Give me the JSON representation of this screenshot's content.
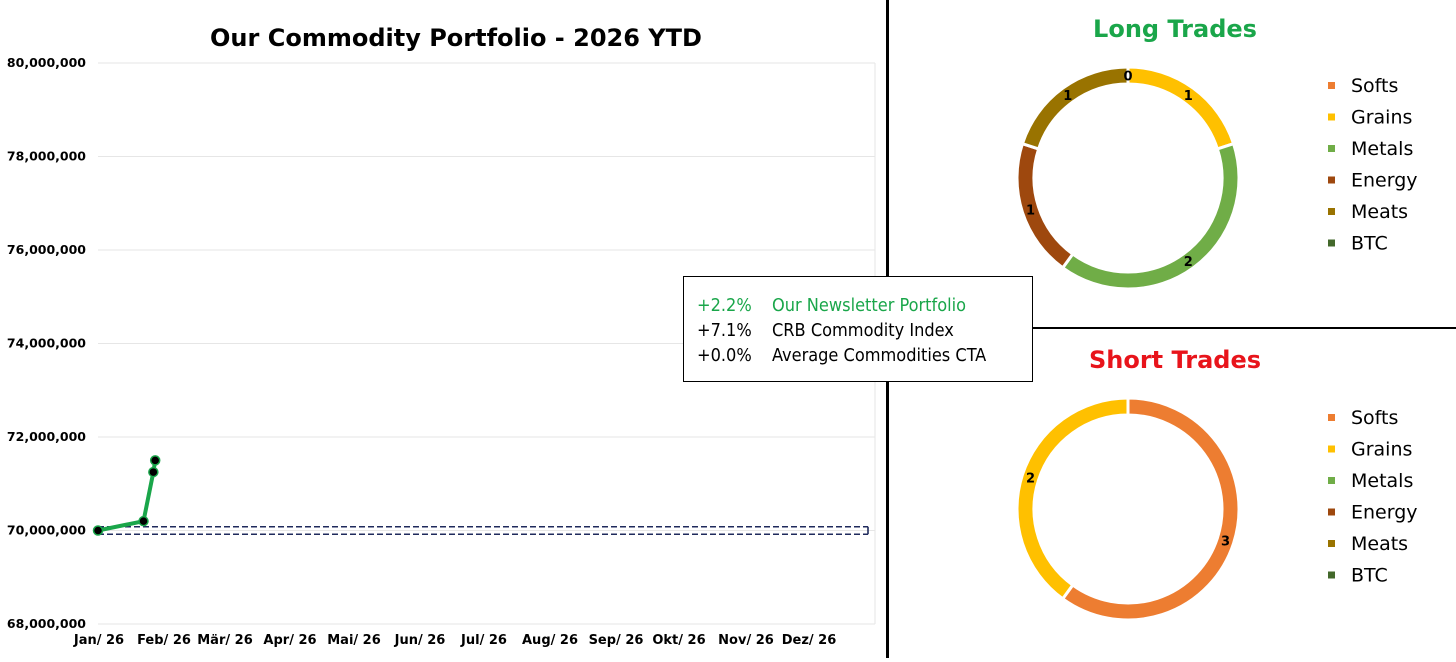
{
  "chart_data": [
    {
      "type": "line",
      "title": "Our Commodity Portfolio - 2026 YTD",
      "categories": [
        "Jan/ 26",
        "Feb/ 26",
        "Mär/ 26",
        "Apr/ 26",
        "Mai/ 26",
        "Jun/ 26",
        "Jul/ 26",
        "Aug/ 26",
        "Sep/ 26",
        "Okt/ 26",
        "Nov/ 26",
        "Dez/ 26"
      ],
      "y_ticks": [
        "68,000,000",
        "70,000,000",
        "72,000,000",
        "74,000,000",
        "76,000,000",
        "78,000,000",
        "80,000,000"
      ],
      "ylim": [
        68000000,
        80000000
      ],
      "grid": true,
      "series": [
        {
          "color": "#1aa64a",
          "points": [
            {
              "x": 0.0,
              "y": 70000000
            },
            {
              "x": 0.74,
              "y": 70200000
            },
            {
              "x": 0.9,
              "y": 71250000
            },
            {
              "x": 0.93,
              "y": 71500000
            }
          ]
        }
      ],
      "reference_lines": [
        {
          "y": 70080000,
          "style": "dashed",
          "color": "#1f2a5c"
        },
        {
          "y": 69920000,
          "style": "dashed",
          "color": "#1f2a5c"
        }
      ]
    },
    {
      "type": "pie",
      "title": "Long Trades",
      "title_color": "#1aa64a",
      "labels": [
        "Softs",
        "Grains",
        "Metals",
        "Energy",
        "Meats",
        "BTC"
      ],
      "values": [
        0,
        1,
        2,
        1,
        1,
        0
      ],
      "colors": [
        "#ed7d31",
        "#ffc000",
        "#70ad47",
        "#9e480e",
        "#997300",
        "#43682b"
      ],
      "legend": "right"
    },
    {
      "type": "pie",
      "title": "Short Trades",
      "title_color": "#e8141b",
      "labels": [
        "Softs",
        "Grains",
        "Metals",
        "Energy",
        "Meats",
        "BTC"
      ],
      "values": [
        3,
        2,
        0,
        0,
        0,
        0
      ],
      "colors": [
        "#ed7d31",
        "#ffc000",
        "#70ad47",
        "#9e480e",
        "#997300",
        "#43682b"
      ],
      "legend": "right"
    }
  ],
  "performance": [
    {
      "value": "+2.2%",
      "label": "Our Newsletter Portfolio",
      "color": "#1aa64a"
    },
    {
      "value": "+7.1%",
      "label": "CRB Commodity Index",
      "color": "#000000"
    },
    {
      "value": "+0.0%",
      "label": "Average Commodities CTA",
      "color": "#000000"
    }
  ]
}
